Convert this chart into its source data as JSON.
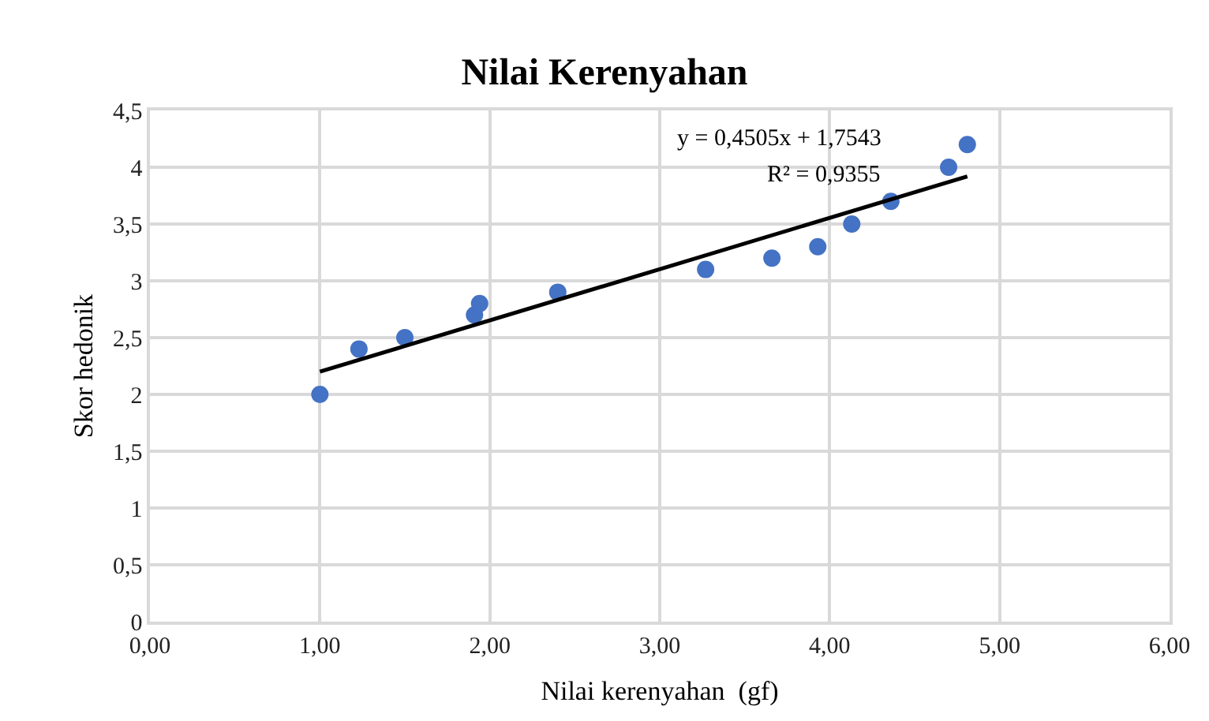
{
  "chart_data": {
    "type": "scatter",
    "title": "Nilai Kerenyahan",
    "xlabel": "Nilai kerenyahan  (gf)",
    "ylabel": "Skor hedonik",
    "series": [
      {
        "color": "#4472c4",
        "marker": "circle",
        "x": [
          1.0,
          1.23,
          1.5,
          1.91,
          1.94,
          2.4,
          3.27,
          3.66,
          3.93,
          4.13,
          4.36,
          4.7,
          4.81
        ],
        "values": [
          2.0,
          2.4,
          2.5,
          2.7,
          2.8,
          2.9,
          3.1,
          3.2,
          3.3,
          3.5,
          3.7,
          4.0,
          4.2
        ]
      },
      {
        "type": "line",
        "color": "#000000",
        "line_style": "solid",
        "x": [
          1.0,
          4.81
        ],
        "values": [
          2.2,
          3.92
        ]
      }
    ],
    "annotations": [
      "y = 0,4505x + 1,7543",
      "R² = 0,9355"
    ],
    "xlim": [
      0,
      6
    ],
    "ylim": [
      0,
      4.5
    ],
    "xticks": [
      {
        "value": 0,
        "label": "0,00"
      },
      {
        "value": 1,
        "label": "1,00"
      },
      {
        "value": 2,
        "label": "2,00"
      },
      {
        "value": 3,
        "label": "3,00"
      },
      {
        "value": 4,
        "label": "4,00"
      },
      {
        "value": 5,
        "label": "5,00"
      },
      {
        "value": 6,
        "label": "6,00"
      }
    ],
    "yticks": [
      0,
      {
        "value": 0.5,
        "label": "0,5"
      },
      1,
      {
        "value": 1.5,
        "label": "1,5"
      },
      2,
      {
        "value": 2.5,
        "label": "2,5"
      },
      3,
      {
        "value": 3.5,
        "label": "3,5"
      },
      4,
      {
        "value": 4.5,
        "label": "4,5"
      }
    ],
    "grid": true,
    "legend": false
  }
}
